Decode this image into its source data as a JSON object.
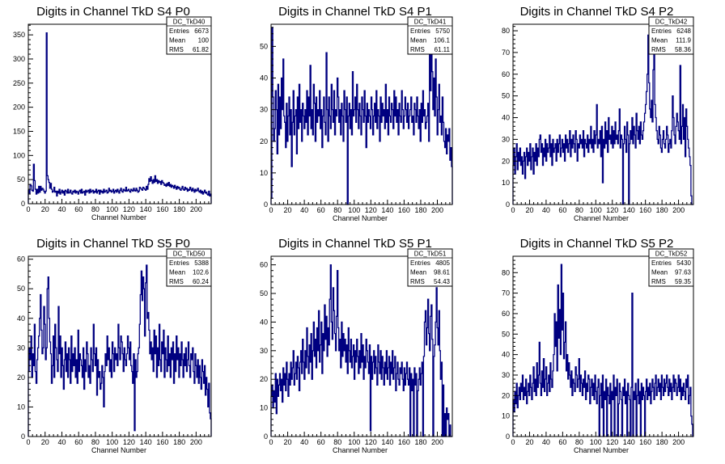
{
  "style": {
    "line_color": "#000080",
    "frame_color": "#000000",
    "background": "#ffffff"
  },
  "chart_data": [
    {
      "type": "line",
      "histogram": "DC_TkD40",
      "title": "Digits in Channel TkD S4 P0",
      "xlabel": "Channel Number",
      "xlim": [
        0,
        218
      ],
      "ylim": [
        0,
        372
      ],
      "xticks": [
        0,
        20,
        40,
        60,
        80,
        100,
        120,
        140,
        160,
        180,
        200
      ],
      "yticks": [
        0,
        50,
        100,
        150,
        200,
        250,
        300,
        350
      ],
      "stats": {
        "entries": "6673",
        "mean": "100",
        "rms": "61.82"
      },
      "values": [
        28,
        22,
        40,
        37,
        28,
        26,
        82,
        48,
        30,
        20,
        30,
        22,
        36,
        24,
        36,
        28,
        32,
        30,
        26,
        22,
        26,
        354,
        58,
        50,
        44,
        32,
        42,
        30,
        24,
        26,
        34,
        24,
        26,
        16,
        26,
        22,
        30,
        20,
        24,
        28,
        22,
        26,
        18,
        28,
        26,
        22,
        30,
        22,
        24,
        28,
        22,
        20,
        26,
        24,
        28,
        22,
        26,
        24,
        20,
        26,
        28,
        22,
        30,
        22,
        24,
        26,
        18,
        28,
        24,
        26,
        28,
        22,
        30,
        24,
        26,
        28,
        22,
        26,
        24,
        30,
        22,
        26,
        28,
        20,
        28,
        24,
        26,
        22,
        30,
        24,
        26,
        28,
        22,
        24,
        32,
        26,
        28,
        24,
        26,
        30,
        22,
        26,
        28,
        24,
        30,
        26,
        22,
        28,
        32,
        26,
        24,
        30,
        28,
        26,
        34,
        26,
        28,
        30,
        26,
        24,
        30,
        28,
        26,
        32,
        28,
        26,
        32,
        28,
        24,
        26,
        34,
        32,
        30,
        28,
        34,
        32,
        30,
        28,
        36,
        30,
        40,
        52,
        46,
        56,
        48,
        42,
        50,
        44,
        58,
        46,
        50,
        42,
        48,
        44,
        46,
        40,
        48,
        44,
        42,
        38,
        40,
        36,
        42,
        38,
        44,
        36,
        40,
        34,
        38,
        36,
        32,
        38,
        34,
        30,
        36,
        32,
        34,
        30,
        28,
        32,
        36,
        30,
        28,
        34,
        30,
        32,
        26,
        30,
        28,
        34,
        30,
        26,
        32,
        28,
        24,
        30,
        26,
        28,
        32,
        26,
        24,
        28,
        22,
        26,
        20,
        24,
        28,
        22,
        24,
        20,
        18,
        26,
        16,
        20
      ]
    },
    {
      "type": "line",
      "histogram": "DC_TkD41",
      "title": "Digits in Channel TkD S4 P1",
      "xlabel": "Channel Number",
      "xlim": [
        0,
        218
      ],
      "ylim": [
        0,
        57
      ],
      "xticks": [
        0,
        20,
        40,
        60,
        80,
        100,
        120,
        140,
        160,
        180,
        200
      ],
      "yticks": [
        0,
        10,
        20,
        30,
        40,
        50
      ],
      "stats": {
        "entries": "5750",
        "mean": "106.1",
        "rms": "61.11"
      },
      "values": [
        2,
        56,
        34,
        20,
        24,
        36,
        30,
        16,
        38,
        22,
        34,
        24,
        40,
        30,
        46,
        28,
        26,
        18,
        32,
        20,
        28,
        34,
        22,
        30,
        12,
        26,
        36,
        22,
        28,
        30,
        16,
        34,
        24,
        38,
        26,
        30,
        20,
        32,
        28,
        24,
        30,
        26,
        36,
        22,
        34,
        28,
        44,
        24,
        30,
        22,
        38,
        32,
        20,
        34,
        26,
        30,
        28,
        36,
        24,
        30,
        18,
        28,
        34,
        26,
        22,
        48,
        30,
        20,
        34,
        28,
        24,
        38,
        30,
        26,
        36,
        22,
        30,
        28,
        40,
        34,
        26,
        30,
        22,
        32,
        28,
        20,
        36,
        30,
        26,
        34,
        0,
        28,
        32,
        24,
        30,
        22,
        42,
        28,
        30,
        34,
        26,
        38,
        30,
        24,
        32,
        28,
        22,
        34,
        30,
        26,
        36,
        28,
        18,
        32,
        26,
        30,
        28,
        24,
        34,
        30,
        22,
        28,
        32,
        26,
        36,
        24,
        30,
        28,
        20,
        34,
        26,
        32,
        28,
        30,
        24,
        38,
        26,
        30,
        22,
        34,
        28,
        26,
        32,
        30,
        24,
        36,
        28,
        34,
        26,
        30,
        22,
        32,
        28,
        26,
        36,
        30,
        24,
        28,
        34,
        30,
        26,
        32,
        24,
        28,
        30,
        34,
        26,
        28,
        22,
        32,
        30,
        26,
        34,
        28,
        24,
        30,
        20,
        32,
        26,
        36,
        28,
        30,
        24,
        26,
        28,
        32,
        20,
        52,
        36,
        48,
        42,
        30,
        40,
        28,
        46,
        34,
        22,
        30,
        38,
        26,
        28,
        22,
        34,
        26,
        20,
        18,
        24,
        16,
        22,
        20,
        24,
        14,
        18,
        12
      ]
    },
    {
      "type": "line",
      "histogram": "DC_TkD42",
      "title": "Digits in Channel TkD S4 P2",
      "xlabel": "Channel Number",
      "xlim": [
        0,
        218
      ],
      "ylim": [
        0,
        83
      ],
      "xticks": [
        0,
        20,
        40,
        60,
        80,
        100,
        120,
        140,
        160,
        180,
        200
      ],
      "yticks": [
        0,
        10,
        20,
        30,
        40,
        50,
        60,
        70,
        80
      ],
      "stats": {
        "entries": "6248",
        "mean": "111.9",
        "rms": "58.36"
      },
      "values": [
        18,
        26,
        14,
        22,
        28,
        16,
        24,
        20,
        26,
        18,
        22,
        14,
        20,
        24,
        12,
        22,
        26,
        18,
        24,
        20,
        28,
        16,
        22,
        26,
        14,
        24,
        20,
        28,
        18,
        26,
        22,
        30,
        32,
        24,
        28,
        18,
        26,
        22,
        30,
        20,
        28,
        24,
        26,
        32,
        22,
        28,
        18,
        30,
        24,
        26,
        28,
        20,
        30,
        24,
        28,
        32,
        22,
        26,
        30,
        24,
        28,
        20,
        32,
        26,
        30,
        24,
        28,
        34,
        22,
        30,
        26,
        32,
        28,
        24,
        34,
        30,
        20,
        28,
        26,
        32,
        28,
        30,
        26,
        34,
        22,
        30,
        28,
        26,
        32,
        24,
        30,
        28,
        36,
        26,
        30,
        24,
        34,
        28,
        32,
        46,
        26,
        30,
        28,
        34,
        22,
        36,
        10,
        30,
        26,
        38,
        28,
        34,
        24,
        40,
        30,
        32,
        28,
        36,
        26,
        34,
        28,
        38,
        30,
        32,
        28,
        34,
        44,
        26,
        32,
        30,
        0,
        28,
        36,
        30,
        24,
        38,
        32,
        0,
        28,
        34,
        30,
        40,
        28,
        36,
        32,
        26,
        42,
        34,
        30,
        36,
        28,
        38,
        32,
        30,
        34,
        38,
        42,
        46,
        52,
        60,
        78,
        56,
        44,
        40,
        48,
        38,
        62,
        72,
        46,
        40,
        34,
        30,
        28,
        36,
        32,
        26,
        24,
        30,
        34,
        28,
        26,
        30,
        36,
        32,
        24,
        28,
        30,
        26,
        34,
        50,
        40,
        32,
        28,
        36,
        42,
        38,
        34,
        30,
        64,
        28,
        36,
        46,
        30,
        40,
        22,
        44,
        36,
        30,
        26,
        22,
        18,
        4,
        0,
        0
      ]
    },
    {
      "type": "line",
      "histogram": "DC_TkD50",
      "title": "Digits in Channel TkD S5 P0",
      "xlabel": "Channel Number",
      "xlim": [
        0,
        218
      ],
      "ylim": [
        0,
        61
      ],
      "xticks": [
        0,
        20,
        40,
        60,
        80,
        100,
        120,
        140,
        160,
        180,
        200
      ],
      "yticks": [
        0,
        10,
        20,
        30,
        40,
        50,
        60
      ],
      "stats": {
        "entries": "5388",
        "mean": "102.6",
        "rms": "60.24"
      },
      "values": [
        22,
        30,
        26,
        34,
        20,
        28,
        24,
        38,
        22,
        18,
        26,
        30,
        34,
        40,
        48,
        36,
        28,
        30,
        44,
        38,
        26,
        30,
        50,
        54,
        40,
        32,
        28,
        18,
        24,
        34,
        20,
        38,
        30,
        26,
        22,
        44,
        28,
        34,
        20,
        30,
        24,
        16,
        26,
        32,
        22,
        28,
        20,
        30,
        26,
        18,
        34,
        22,
        28,
        24,
        30,
        20,
        26,
        18,
        36,
        22,
        28,
        26,
        24,
        20,
        30,
        16,
        26,
        22,
        32,
        28,
        20,
        24,
        18,
        30,
        26,
        22,
        38,
        28,
        24,
        30,
        14,
        26,
        20,
        22,
        16,
        18,
        24,
        20,
        10,
        22,
        28,
        24,
        34,
        26,
        30,
        22,
        26,
        20,
        32,
        28,
        22,
        30,
        26,
        28,
        24,
        38,
        30,
        26,
        34,
        32,
        28,
        22,
        30,
        26,
        24,
        28,
        34,
        30,
        26,
        32,
        24,
        22,
        18,
        28,
        2,
        26,
        20,
        22,
        28,
        30,
        38,
        48,
        56,
        46,
        54,
        50,
        34,
        52,
        58,
        40,
        42,
        36,
        28,
        32,
        26,
        30,
        22,
        36,
        28,
        34,
        20,
        30,
        24,
        38,
        26,
        22,
        32,
        28,
        36,
        20,
        30,
        26,
        22,
        34,
        24,
        28,
        20,
        30,
        26,
        32,
        18,
        28,
        22,
        34,
        26,
        30,
        20,
        28,
        24,
        32,
        26,
        20,
        28,
        24,
        30,
        22,
        26,
        32,
        24,
        20,
        28,
        26,
        30,
        22,
        18,
        28,
        24,
        20,
        26,
        18,
        24,
        20,
        16,
        26,
        22,
        18,
        24,
        14,
        20,
        16,
        10,
        18,
        8,
        6
      ]
    },
    {
      "type": "line",
      "histogram": "DC_TkD51",
      "title": "Digits in Channel TkD S5 P1",
      "xlabel": "Channel Number",
      "xlim": [
        0,
        218
      ],
      "ylim": [
        0,
        63
      ],
      "xticks": [
        0,
        20,
        40,
        60,
        80,
        100,
        120,
        140,
        160,
        180,
        200
      ],
      "yticks": [
        0,
        10,
        20,
        30,
        40,
        50,
        60
      ],
      "stats": {
        "entries": "4805",
        "mean": "98.61",
        "rms": "54.43"
      },
      "values": [
        14,
        18,
        10,
        16,
        12,
        22,
        8,
        20,
        14,
        18,
        22,
        16,
        20,
        12,
        24,
        18,
        22,
        16,
        26,
        20,
        14,
        22,
        18,
        26,
        20,
        24,
        30,
        18,
        22,
        26,
        20,
        28,
        24,
        16,
        26,
        30,
        22,
        34,
        26,
        20,
        30,
        24,
        38,
        28,
        22,
        32,
        26,
        36,
        20,
        30,
        40,
        28,
        34,
        24,
        38,
        30,
        44,
        26,
        32,
        40,
        22,
        36,
        30,
        46,
        34,
        42,
        28,
        38,
        32,
        48,
        60,
        40,
        34,
        52,
        44,
        36,
        30,
        42,
        58,
        38,
        30,
        34,
        24,
        40,
        28,
        36,
        30,
        34,
        26,
        32,
        22,
        38,
        30,
        26,
        34,
        24,
        28,
        32,
        20,
        30,
        26,
        34,
        28,
        22,
        30,
        24,
        36,
        26,
        32,
        20,
        28,
        24,
        34,
        30,
        26,
        22,
        32,
        2,
        28,
        20,
        26,
        30,
        22,
        28,
        24,
        18,
        32,
        26,
        22,
        30,
        20,
        28,
        24,
        18,
        26,
        22,
        30,
        20,
        24,
        28,
        18,
        26,
        22,
        30,
        20,
        24,
        28,
        16,
        22,
        26,
        20,
        18,
        24,
        22,
        26,
        20,
        16,
        24,
        18,
        22,
        26,
        20,
        18,
        24,
        0,
        22,
        16,
        20,
        0,
        24,
        18,
        22,
        0,
        16,
        20,
        24,
        18,
        22,
        26,
        0,
        28,
        40,
        44,
        32,
        38,
        48,
        36,
        30,
        42,
        46,
        34,
        0,
        28,
        32,
        40,
        52,
        38,
        32,
        44,
        30,
        20,
        26,
        0,
        18,
        0,
        8,
        0,
        10,
        6,
        8,
        0,
        4,
        0,
        0
      ]
    },
    {
      "type": "line",
      "histogram": "DC_TkD52",
      "title": "Digits in Channel TkD S5 P2",
      "xlabel": "Channel Number",
      "xlim": [
        0,
        218
      ],
      "ylim": [
        0,
        88
      ],
      "xticks": [
        0,
        20,
        40,
        60,
        80,
        100,
        120,
        140,
        160,
        180,
        200
      ],
      "yticks": [
        0,
        10,
        20,
        30,
        40,
        50,
        60,
        70,
        80
      ],
      "stats": {
        "entries": "5430",
        "mean": "97.63",
        "rms": "59.35"
      },
      "values": [
        18,
        12,
        22,
        16,
        26,
        14,
        20,
        24,
        18,
        26,
        22,
        30,
        18,
        24,
        20,
        28,
        16,
        22,
        26,
        20,
        30,
        24,
        18,
        26,
        34,
        22,
        28,
        20,
        36,
        24,
        30,
        46,
        26,
        20,
        32,
        24,
        38,
        22,
        28,
        34,
        20,
        26,
        30,
        22,
        36,
        28,
        24,
        32,
        40,
        60,
        44,
        56,
        32,
        74,
        48,
        62,
        40,
        84,
        52,
        70,
        38,
        46,
        56,
        32,
        40,
        28,
        36,
        30,
        24,
        32,
        20,
        28,
        26,
        22,
        34,
        30,
        24,
        28,
        38,
        22,
        30,
        26,
        20,
        28,
        24,
        32,
        18,
        26,
        22,
        30,
        28,
        16,
        24,
        28,
        20,
        26,
        18,
        30,
        22,
        16,
        24,
        28,
        0,
        20,
        26,
        14,
        30,
        0,
        22,
        18,
        28,
        0,
        24,
        20,
        16,
        26,
        0,
        22,
        18,
        30,
        0,
        24,
        20,
        28,
        0,
        16,
        26,
        22,
        18,
        0,
        24,
        20,
        28,
        16,
        22,
        0,
        26,
        20,
        18,
        0,
        24,
        70,
        0,
        22,
        18,
        26,
        0,
        20,
        28,
        16,
        22,
        0,
        26,
        18,
        24,
        20,
        0,
        22,
        28,
        18,
        24,
        20,
        26,
        16,
        22,
        28,
        24,
        18,
        26,
        30,
        20,
        24,
        28,
        22,
        26,
        18,
        30,
        24,
        20,
        28,
        22,
        26,
        30,
        24,
        20,
        28,
        22,
        26,
        18,
        24,
        30,
        22,
        28,
        26,
        20,
        24,
        30,
        22,
        28,
        18,
        24,
        20,
        26,
        22,
        18,
        28,
        24,
        30,
        16,
        20,
        24,
        10,
        6,
        0
      ]
    }
  ]
}
